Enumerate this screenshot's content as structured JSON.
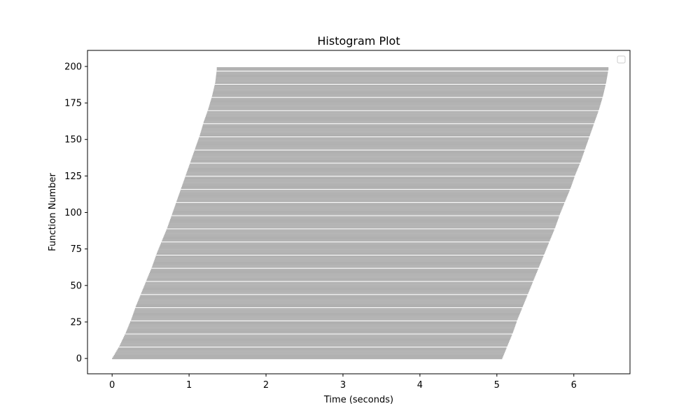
{
  "chart_data": {
    "type": "bar",
    "orientation": "horizontal",
    "title": "Histogram Plot",
    "xlabel": "Time (seconds)",
    "ylabel": "Function Number",
    "xlim": [
      -0.32,
      6.73
    ],
    "ylim": [
      -10.5,
      211
    ],
    "xticks": [
      0,
      1,
      2,
      3,
      4,
      5,
      6
    ],
    "yticks": [
      0,
      25,
      50,
      75,
      100,
      125,
      150,
      175,
      200
    ],
    "bar_color": "#b0b0b0",
    "band_size": 9,
    "bar_count": 200,
    "bars": [
      {
        "from": 0,
        "to": 8,
        "start": 0.0,
        "end": 5.07
      },
      {
        "from": 9,
        "to": 17,
        "start": 0.1,
        "end": 5.14
      },
      {
        "from": 18,
        "to": 26,
        "start": 0.18,
        "end": 5.21
      },
      {
        "from": 27,
        "to": 35,
        "start": 0.25,
        "end": 5.27
      },
      {
        "from": 36,
        "to": 44,
        "start": 0.31,
        "end": 5.34
      },
      {
        "from": 45,
        "to": 53,
        "start": 0.38,
        "end": 5.41
      },
      {
        "from": 54,
        "to": 62,
        "start": 0.45,
        "end": 5.48
      },
      {
        "from": 63,
        "to": 71,
        "start": 0.52,
        "end": 5.55
      },
      {
        "from": 72,
        "to": 80,
        "start": 0.58,
        "end": 5.62
      },
      {
        "from": 81,
        "to": 89,
        "start": 0.65,
        "end": 5.69
      },
      {
        "from": 90,
        "to": 98,
        "start": 0.72,
        "end": 5.76
      },
      {
        "from": 99,
        "to": 107,
        "start": 0.78,
        "end": 5.82
      },
      {
        "from": 108,
        "to": 116,
        "start": 0.84,
        "end": 5.89
      },
      {
        "from": 117,
        "to": 125,
        "start": 0.9,
        "end": 5.96
      },
      {
        "from": 126,
        "to": 134,
        "start": 0.96,
        "end": 6.02
      },
      {
        "from": 135,
        "to": 143,
        "start": 1.02,
        "end": 6.09
      },
      {
        "from": 144,
        "to": 152,
        "start": 1.08,
        "end": 6.15
      },
      {
        "from": 153,
        "to": 161,
        "start": 1.14,
        "end": 6.21
      },
      {
        "from": 162,
        "to": 170,
        "start": 1.19,
        "end": 6.27
      },
      {
        "from": 171,
        "to": 179,
        "start": 1.25,
        "end": 6.33
      },
      {
        "from": 180,
        "to": 188,
        "start": 1.3,
        "end": 6.38
      },
      {
        "from": 189,
        "to": 197,
        "start": 1.34,
        "end": 6.42
      },
      {
        "from": 198,
        "to": 199,
        "start": 1.36,
        "end": 6.45
      }
    ],
    "legend": {
      "placement": "top-right",
      "entries": []
    }
  }
}
